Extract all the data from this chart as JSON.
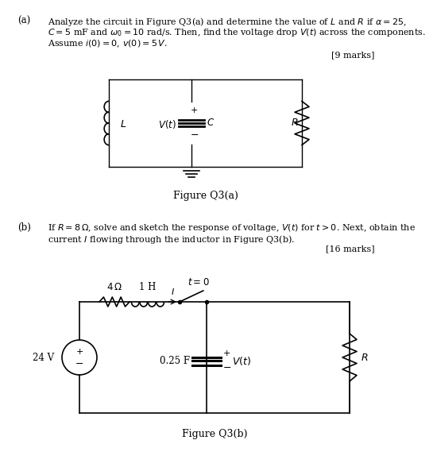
{
  "part_a_label": "(a)",
  "part_a_text_line1": "Analyze the circuit in Figure Q3(a) and determine the value of $L$ and $R$ if $\\alpha =  25$,",
  "part_a_text_line2": "$C = 5$ mF and $\\omega_0 = 10$ rad/s. Then, find the voltage drop $V(t)$ across the components.",
  "part_a_text_line3": "Assume $i(0) = 0$, $v(0) = 5\\,V$.",
  "part_a_marks": "[9 marks]",
  "fig_a_caption": "Figure Q3(a)",
  "part_b_label": "(b)",
  "part_b_text_line1": "If $R = 8\\,\\Omega$, solve and sketch the response of voltage, $V(t)$ for $t > 0$. Next, obtain the",
  "part_b_text_line2": "current $I$ flowing through the inductor in Figure Q3(b).",
  "part_b_marks": "[16 marks]",
  "fig_b_caption": "Figure Q3(b)",
  "bg_color": "#ffffff",
  "text_color": "#000000"
}
